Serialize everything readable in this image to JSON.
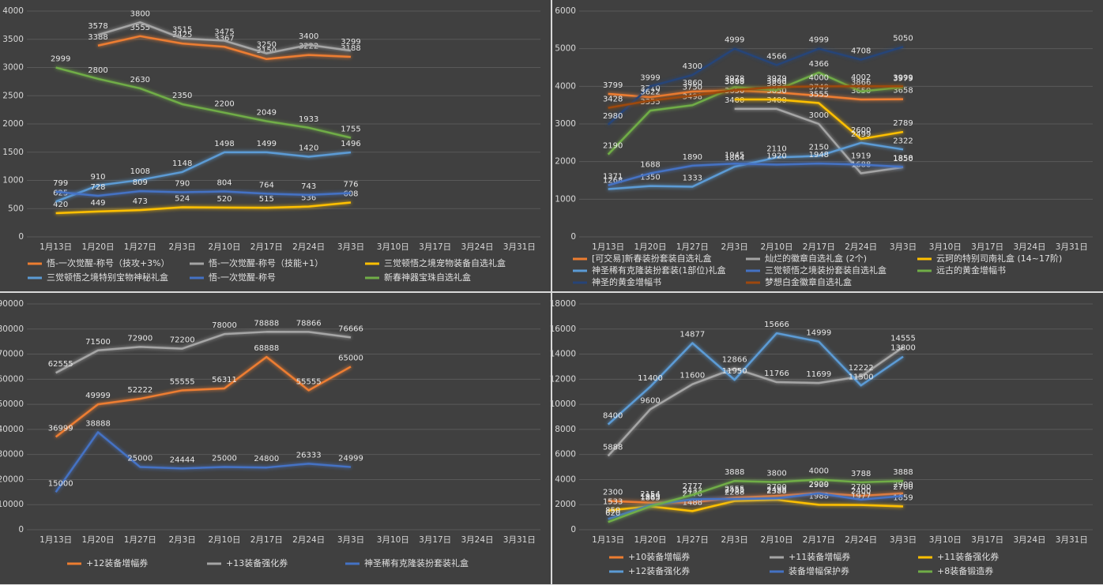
{
  "chart_data": [
    {
      "type": "line",
      "categories": [
        "1月13日",
        "1月20日",
        "1月27日",
        "2月3日",
        "2月10日",
        "2月17日",
        "2月24日",
        "3月3日",
        "3月10日",
        "3月17日",
        "3月24日",
        "3月31日"
      ],
      "ylim": [
        0,
        4000
      ],
      "yticks": [
        0,
        500,
        1000,
        1500,
        2000,
        2500,
        3000,
        3500,
        4000
      ],
      "grid": true,
      "series": [
        {
          "name": "悟-一次觉醒-称号（技攻+3%）",
          "color": "#ed7d31",
          "values": [
            null,
            3388,
            3555,
            3425,
            3367,
            3150,
            3222,
            3188,
            null,
            null,
            null,
            null
          ]
        },
        {
          "name": "悟-一次觉醒-称号（技能+1）",
          "color": "#a5a5a5",
          "values": [
            null,
            3578,
            3800,
            3515,
            3475,
            3250,
            3400,
            3299,
            null,
            null,
            null,
            null
          ]
        },
        {
          "name": "三觉顿悟之境宠物装备自选礼盒",
          "color": "#ffc000",
          "values": [
            420,
            449,
            473,
            524,
            520,
            515,
            536,
            608,
            null,
            null,
            null,
            null
          ]
        },
        {
          "name": "三觉顿悟之境特别宝物神秘礼盒",
          "color": "#5b9bd5",
          "values": [
            625,
            910,
            1008,
            1148,
            1498,
            1499,
            1420,
            1496,
            null,
            null,
            null,
            null
          ]
        },
        {
          "name": "悟-一次觉醒-称号",
          "color": "#4472c4",
          "values": [
            799,
            728,
            809,
            790,
            804,
            764,
            743,
            776,
            null,
            null,
            null,
            null
          ]
        },
        {
          "name": "新春神器宝珠自选礼盒",
          "color": "#70ad47",
          "values": [
            2999,
            2800,
            2630,
            2350,
            2200,
            2049,
            1933,
            1755,
            null,
            null,
            null,
            null
          ]
        }
      ]
    },
    {
      "type": "line",
      "categories": [
        "1月13日",
        "1月20日",
        "1月27日",
        "2月3日",
        "2月10日",
        "2月17日",
        "2月24日",
        "3月3日",
        "3月10日",
        "3月17日",
        "3月24日",
        "3月31日"
      ],
      "ylim": [
        0,
        6000
      ],
      "yticks": [
        0,
        1000,
        2000,
        3000,
        4000,
        5000,
        6000
      ],
      "grid": true,
      "series": [
        {
          "name": "[可交易]新春装扮套装自选礼盒",
          "color": "#ed7d31",
          "values": [
            3799,
            3710,
            3860,
            3888,
            3839,
            3749,
            3650,
            3658,
            null,
            null,
            null,
            null
          ]
        },
        {
          "name": "灿烂的徽章自选礼盒 (2个)",
          "color": "#a5a5a5",
          "values": [
            null,
            null,
            null,
            3400,
            3400,
            3000,
            1688,
            1850,
            null,
            null,
            null,
            null
          ]
        },
        {
          "name": "云珂的特别司南礼盒 (14~17阶)",
          "color": "#ffc000",
          "values": [
            null,
            null,
            null,
            3650,
            3650,
            3555,
            2600,
            2789,
            null,
            null,
            null,
            null
          ]
        },
        {
          "name": "神圣稀有克隆装扮套装(1部位)礼盒",
          "color": "#5b9bd5",
          "values": [
            1268,
            1350,
            1333,
            1864,
            2110,
            2150,
            2499,
            2322,
            null,
            null,
            null,
            null
          ]
        },
        {
          "name": "三觉顿悟之境装扮套装自选礼盒",
          "color": "#4472c4",
          "values": [
            1371,
            1688,
            1890,
            1945,
            1920,
            1948,
            1919,
            1858,
            null,
            null,
            null,
            null
          ]
        },
        {
          "name": "远古的黄金增幅书",
          "color": "#70ad47",
          "values": [
            2190,
            3355,
            3498,
            3978,
            3900,
            4366,
            3866,
            3979,
            null,
            null,
            null,
            null
          ]
        },
        {
          "name": "神圣的黄金增幅书",
          "color": "#264478",
          "values": [
            2980,
            3999,
            4300,
            4999,
            4566,
            4999,
            4708,
            5050,
            null,
            null,
            null,
            null
          ]
        },
        {
          "name": "梦想白金徽章自选礼盒",
          "color": "#9e480e",
          "values": [
            3428,
            3622,
            3750,
            3899,
            3979,
            4000,
            4002,
            3999,
            null,
            null,
            null,
            null
          ]
        }
      ]
    },
    {
      "type": "line",
      "categories": [
        "1月13日",
        "1月20日",
        "1月27日",
        "2月3日",
        "2月10日",
        "2月17日",
        "2月24日",
        "3月3日",
        "3月10日",
        "3月17日",
        "3月24日",
        "3月31日"
      ],
      "ylim": [
        0,
        90000
      ],
      "yticks": [
        0,
        10000,
        20000,
        30000,
        40000,
        50000,
        60000,
        70000,
        80000,
        90000
      ],
      "grid": true,
      "series": [
        {
          "name": "+12装备增幅券",
          "color": "#ed7d31",
          "values": [
            36999,
            49999,
            52222,
            55555,
            56311,
            68888,
            55555,
            65000,
            null,
            null,
            null,
            null
          ]
        },
        {
          "name": "+13装备强化券",
          "color": "#a5a5a5",
          "values": [
            62555,
            71500,
            72900,
            72200,
            78000,
            78888,
            78866,
            76666,
            null,
            null,
            null,
            null
          ]
        },
        {
          "name": "神圣稀有克隆装扮套装礼盒",
          "color": "#4472c4",
          "values": [
            15000,
            38888,
            25000,
            24444,
            25000,
            24800,
            26333,
            24999,
            null,
            null,
            null,
            null
          ]
        }
      ]
    },
    {
      "type": "line",
      "categories": [
        "1月13日",
        "1月20日",
        "1月27日",
        "2月3日",
        "2月10日",
        "2月17日",
        "2月24日",
        "3月3日",
        "3月10日",
        "3月17日",
        "3月24日",
        "3月31日"
      ],
      "ylim": [
        0,
        18000
      ],
      "yticks": [
        0,
        2000,
        4000,
        6000,
        8000,
        10000,
        12000,
        14000,
        16000,
        18000
      ],
      "grid": true,
      "series": [
        {
          "name": "+10装备增幅券",
          "color": "#ed7d31",
          "values": [
            2300,
            2154,
            2178,
            2555,
            2700,
            2929,
            2700,
            2900,
            null,
            null,
            null,
            null
          ]
        },
        {
          "name": "+11装备增幅券",
          "color": "#a5a5a5",
          "values": [
            5888,
            9600,
            11600,
            12866,
            11766,
            11699,
            12222,
            14555,
            null,
            null,
            null,
            null
          ]
        },
        {
          "name": "+11装备强化券",
          "color": "#ffc000",
          "values": [
            1533,
            1865,
            1488,
            2288,
            2388,
            1988,
            1977,
            1859,
            null,
            null,
            null,
            null
          ]
        },
        {
          "name": "+12装备强化券",
          "color": "#5b9bd5",
          "values": [
            8400,
            11400,
            14877,
            11950,
            15666,
            14999,
            11500,
            13800,
            null,
            null,
            null,
            null
          ]
        },
        {
          "name": "装备增幅保护券",
          "color": "#4472c4",
          "values": [
            850,
            1959,
            2433,
            2455,
            2498,
            2900,
            2400,
            2700,
            null,
            null,
            null,
            null
          ]
        },
        {
          "name": "+8装备锻造券",
          "color": "#70ad47",
          "values": [
            620,
            1865,
            2777,
            3888,
            3800,
            4000,
            3788,
            3888,
            null,
            null,
            null,
            null
          ]
        }
      ]
    }
  ]
}
